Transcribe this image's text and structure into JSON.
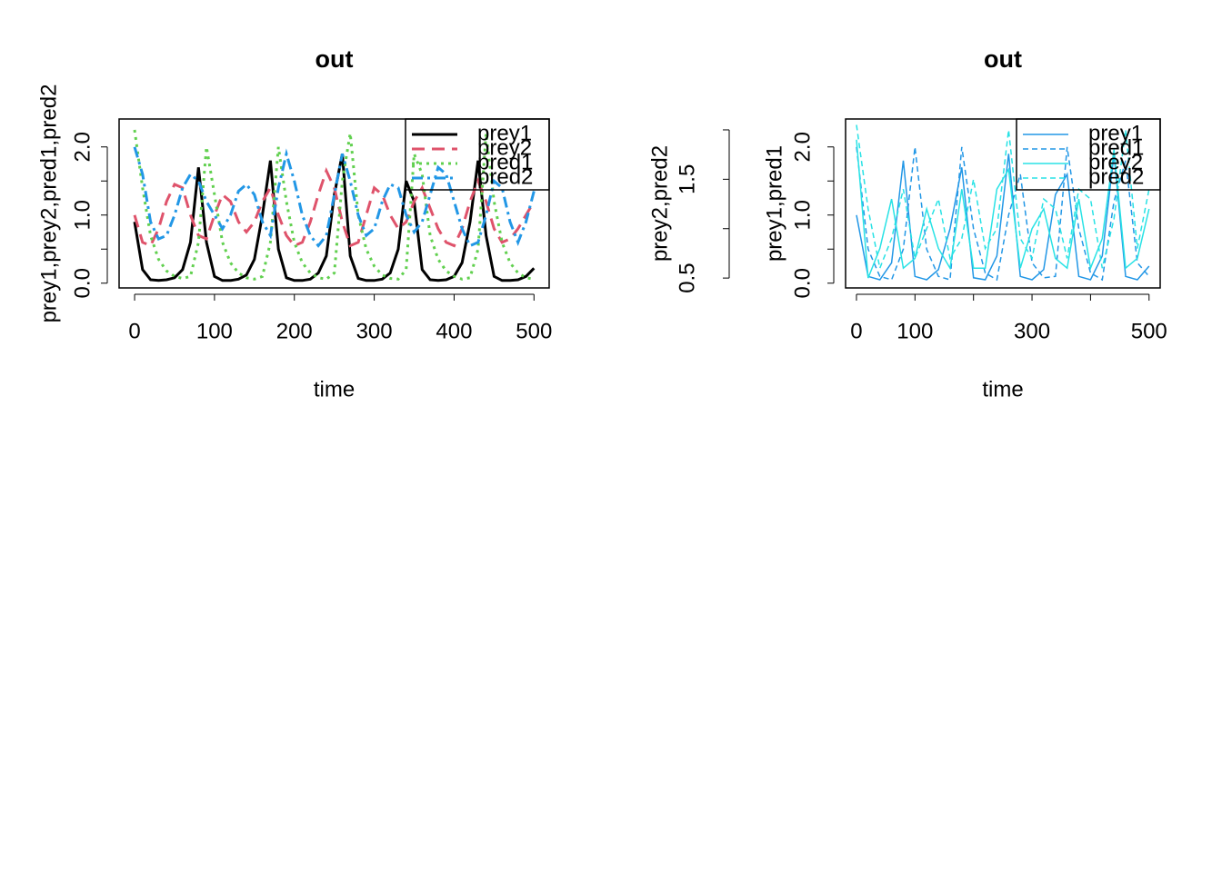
{
  "chart_data": [
    {
      "type": "line",
      "title": "out",
      "xlabel": "time",
      "ylabel": "prey1,prey2,pred1,pred2",
      "xlim": [
        -19.4,
        519
      ],
      "ylim": [
        -0.07,
        2.41
      ],
      "xticks": [
        0,
        100,
        200,
        300,
        400,
        500
      ],
      "yticks": [
        {
          "value": 0,
          "label": "0.0"
        },
        {
          "value": 1,
          "label": "1.0"
        },
        {
          "value": 2,
          "label": "2.0"
        }
      ],
      "yminor": [
        0.5,
        1.5
      ],
      "legend": "topright",
      "x": [
        0,
        10,
        20,
        30,
        40,
        50,
        60,
        70,
        80,
        90,
        100,
        110,
        120,
        130,
        140,
        150,
        160,
        170,
        180,
        190,
        200,
        210,
        220,
        230,
        240,
        250,
        260,
        270,
        280,
        290,
        300,
        310,
        320,
        330,
        340,
        350,
        360,
        370,
        380,
        390,
        400,
        410,
        420,
        430,
        440,
        450,
        460,
        470,
        480,
        490,
        500
      ],
      "series": [
        {
          "name": "prey1",
          "color": "#000000",
          "dash": "none",
          "width": 3,
          "values": [
            0.9,
            0.2,
            0.05,
            0.04,
            0.05,
            0.08,
            0.2,
            0.6,
            1.7,
            0.6,
            0.1,
            0.04,
            0.04,
            0.06,
            0.12,
            0.35,
            1.0,
            1.8,
            0.5,
            0.08,
            0.04,
            0.04,
            0.06,
            0.15,
            0.4,
            1.3,
            1.9,
            0.4,
            0.07,
            0.04,
            0.04,
            0.06,
            0.15,
            0.5,
            1.5,
            1.2,
            0.2,
            0.05,
            0.04,
            0.05,
            0.1,
            0.3,
            0.9,
            1.8,
            0.7,
            0.1,
            0.04,
            0.04,
            0.05,
            0.1,
            0.22
          ]
        },
        {
          "name": "prey2",
          "color": "#DF536B",
          "dash": "14 8",
          "width": 3,
          "values": [
            1.0,
            0.6,
            0.55,
            0.8,
            1.2,
            1.45,
            1.4,
            1.0,
            0.7,
            0.65,
            1.0,
            1.3,
            1.2,
            0.9,
            0.75,
            0.9,
            1.2,
            1.4,
            1.0,
            0.7,
            0.55,
            0.6,
            0.9,
            1.3,
            1.65,
            1.4,
            0.9,
            0.55,
            0.6,
            1.0,
            1.4,
            1.3,
            1.0,
            0.8,
            0.9,
            1.2,
            1.4,
            1.1,
            0.8,
            0.6,
            0.55,
            0.8,
            1.2,
            1.5,
            1.2,
            0.8,
            0.6,
            0.65,
            0.8,
            1.0,
            1.2
          ]
        },
        {
          "name": "pred1",
          "color": "#61D04F",
          "dash": "3 5",
          "width": 3,
          "values": [
            2.25,
            1.4,
            0.7,
            0.35,
            0.18,
            0.1,
            0.07,
            0.1,
            0.6,
            2.0,
            1.3,
            0.6,
            0.3,
            0.15,
            0.08,
            0.06,
            0.1,
            0.6,
            2.0,
            1.2,
            0.6,
            0.3,
            0.15,
            0.08,
            0.06,
            0.15,
            1.5,
            2.2,
            1.0,
            0.5,
            0.25,
            0.12,
            0.07,
            0.06,
            0.2,
            1.9,
            1.6,
            0.7,
            0.35,
            0.18,
            0.1,
            0.06,
            0.08,
            0.5,
            2.2,
            1.2,
            0.6,
            0.3,
            0.15,
            0.08,
            0.06
          ]
        },
        {
          "name": "pred2",
          "color": "#2297E6",
          "dash": "12 5 3 5",
          "width": 3,
          "values": [
            2.0,
            1.6,
            0.9,
            0.65,
            0.7,
            1.0,
            1.4,
            1.6,
            1.5,
            1.2,
            1.0,
            0.8,
            1.0,
            1.35,
            1.45,
            1.3,
            0.9,
            0.7,
            1.4,
            1.9,
            1.5,
            1.0,
            0.7,
            0.55,
            0.7,
            1.3,
            1.9,
            1.5,
            1.0,
            0.7,
            0.8,
            1.2,
            1.45,
            1.4,
            1.0,
            0.75,
            0.9,
            1.3,
            1.7,
            1.6,
            1.2,
            0.8,
            0.55,
            0.6,
            1.0,
            1.5,
            1.4,
            0.9,
            0.6,
            0.9,
            1.35
          ]
        }
      ]
    },
    {
      "type": "line",
      "title": "out",
      "xlabel": "time",
      "ylabel": "prey1,pred1",
      "y2label": "prey2,pred2",
      "xlim": [
        -18.6,
        519
      ],
      "ylim": [
        -0.07,
        2.41
      ],
      "y2lim": [
        0.4,
        2.11
      ],
      "xticks": [
        0,
        100,
        300,
        500
      ],
      "xminor": [
        200,
        400
      ],
      "yticks": [
        {
          "value": 0,
          "label": "0.0"
        },
        {
          "value": 1,
          "label": "1.0"
        },
        {
          "value": 2,
          "label": "2.0"
        }
      ],
      "yminor": [
        0.5,
        1.5
      ],
      "y2ticks": [
        0.5,
        1.5
      ],
      "y2minor": [
        1,
        2
      ],
      "legend": "topright",
      "x": [
        0,
        20,
        40,
        60,
        80,
        100,
        120,
        140,
        160,
        180,
        200,
        220,
        240,
        260,
        280,
        300,
        320,
        340,
        360,
        380,
        400,
        420,
        440,
        460,
        480,
        500
      ],
      "series": [
        {
          "name": "prey1",
          "color": "#2297E6",
          "dash": "none",
          "width": 1.5,
          "values": [
            1.0,
            0.1,
            0.05,
            0.3,
            1.8,
            0.1,
            0.05,
            0.2,
            0.8,
            1.7,
            0.08,
            0.05,
            0.4,
            1.9,
            0.1,
            0.05,
            0.2,
            1.3,
            1.6,
            0.1,
            0.05,
            0.4,
            1.9,
            0.1,
            0.05,
            0.25
          ]
        },
        {
          "name": "pred1",
          "color": "#2297E6",
          "dash": "6 4",
          "width": 1.5,
          "values": [
            2.0,
            0.5,
            0.1,
            0.05,
            0.5,
            2.0,
            0.5,
            0.1,
            0.05,
            2.0,
            0.8,
            0.15,
            0.05,
            1.0,
            1.6,
            0.3,
            0.08,
            0.1,
            2.0,
            0.8,
            0.15,
            0.05,
            1.2,
            1.8,
            0.3,
            0.1
          ]
        },
        {
          "name": "prey2",
          "color": "#28E2E5",
          "dash": "none",
          "width": 1.5,
          "axis": "y2",
          "values": [
            1.9,
            0.5,
            0.8,
            1.3,
            0.6,
            0.7,
            1.2,
            0.8,
            0.6,
            1.4,
            0.6,
            0.6,
            1.4,
            1.6,
            0.6,
            1.0,
            1.2,
            0.7,
            0.6,
            1.3,
            0.6,
            0.9,
            1.8,
            0.6,
            0.7,
            1.2
          ]
        },
        {
          "name": "pred2",
          "color": "#28E2E5",
          "dash": "6 4",
          "width": 1.5,
          "axis": "y2",
          "values": [
            2.05,
            1.2,
            0.6,
            0.9,
            1.4,
            0.7,
            1.0,
            1.3,
            0.7,
            0.9,
            1.5,
            0.8,
            1.0,
            2.0,
            0.9,
            0.7,
            1.3,
            1.2,
            0.7,
            1.4,
            1.3,
            0.6,
            1.1,
            2.0,
            0.8,
            1.4
          ]
        }
      ]
    }
  ]
}
